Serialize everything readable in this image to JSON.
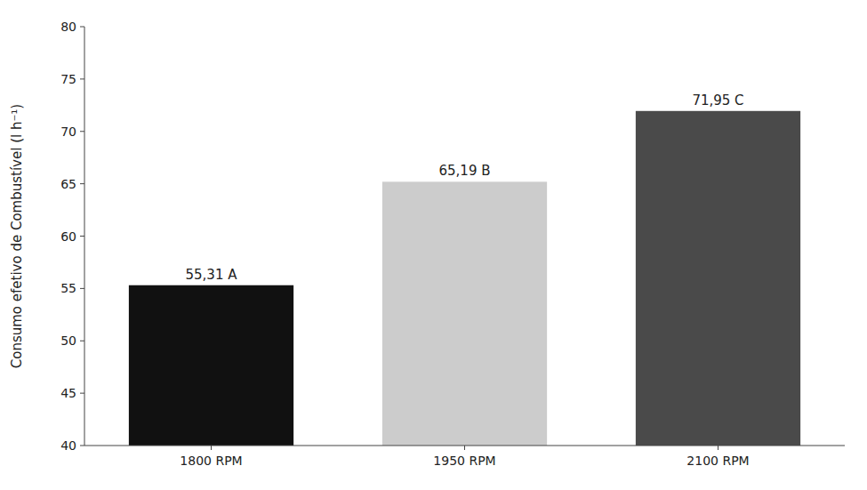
{
  "chart_data": {
    "type": "bar",
    "categories": [
      "1800 RPM",
      "1950 RPM",
      "2100 RPM"
    ],
    "values": [
      55.31,
      65.19,
      71.95
    ],
    "value_labels": [
      "55,31 A",
      "65,19 B",
      "71,95 C"
    ],
    "data_labels": true,
    "colors": [
      "#111111",
      "#cccccc",
      "#4a4a4a"
    ],
    "ylabel": "Consumo efetivo de Combustível (l h⁻¹)",
    "ylim": [
      40,
      80
    ],
    "yticks": [
      40,
      45,
      50,
      55,
      60,
      65,
      70,
      75,
      80
    ],
    "grid": false
  }
}
